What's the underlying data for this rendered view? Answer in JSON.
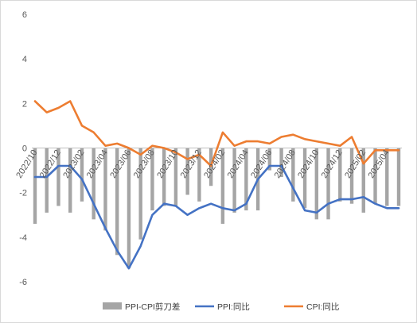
{
  "chart_data": {
    "type": "bar+line",
    "title": "",
    "xlabel": "",
    "ylabel": "",
    "ylim": [
      -6,
      6
    ],
    "yticks": [
      -6,
      -4,
      -2,
      0,
      2,
      4,
      6
    ],
    "grid": false,
    "legend_position": "bottom",
    "x_tick_labels": [
      "2022/10",
      "2022/12",
      "2023/02",
      "2023/04",
      "2023/06",
      "2023/08",
      "2023/10",
      "2023/12",
      "2024/02",
      "2024/04",
      "2024/06",
      "2024/08",
      "2024/10",
      "2024/12",
      "2025/02",
      "2025/04"
    ],
    "categories": [
      "2022/10",
      "2022/11",
      "2022/12",
      "2023/01",
      "2023/02",
      "2023/03",
      "2023/04",
      "2023/05",
      "2023/06",
      "2023/07",
      "2023/08",
      "2023/09",
      "2023/10",
      "2023/11",
      "2023/12",
      "2024/01",
      "2024/02",
      "2024/03",
      "2024/04",
      "2024/05",
      "2024/06",
      "2024/07",
      "2024/08",
      "2024/09",
      "2024/10",
      "2024/11",
      "2024/12",
      "2025/01",
      "2025/02",
      "2025/03",
      "2025/04",
      "2025/05"
    ],
    "series": [
      {
        "name": "PPI-CPI剪刀差",
        "kind": "bar",
        "color": "#a5a5a5",
        "values": [
          -3.4,
          -2.9,
          -2.6,
          -2.9,
          -2.4,
          -3.2,
          -3.7,
          -4.8,
          -5.4,
          -4.1,
          -2.8,
          -2.6,
          -2.6,
          -2.1,
          -2.4,
          -1.7,
          -3.4,
          -2.9,
          -2.8,
          -2.8,
          -1.0,
          -1.3,
          -2.4,
          -2.7,
          -3.2,
          -3.2,
          -2.4,
          -2.5,
          -2.9,
          -2.5,
          -2.6,
          -2.6
        ]
      },
      {
        "name": "PPI:同比",
        "kind": "line",
        "color": "#4472c4",
        "values": [
          -1.3,
          -1.3,
          -0.8,
          -0.8,
          -1.4,
          -2.5,
          -3.6,
          -4.6,
          -5.4,
          -4.4,
          -3.0,
          -2.5,
          -2.6,
          -3.0,
          -2.7,
          -2.5,
          -2.7,
          -2.8,
          -2.5,
          -1.4,
          -0.8,
          -0.8,
          -1.8,
          -2.8,
          -2.9,
          -2.5,
          -2.3,
          -2.3,
          -2.2,
          -2.5,
          -2.7,
          -2.7
        ]
      },
      {
        "name": "CPI:同比",
        "kind": "line",
        "color": "#ed7d31",
        "values": [
          2.1,
          1.6,
          1.8,
          2.1,
          1.0,
          0.7,
          0.1,
          0.2,
          0.0,
          -0.3,
          0.1,
          0.0,
          -0.2,
          -0.5,
          -0.3,
          -0.8,
          0.7,
          0.1,
          0.3,
          0.3,
          0.2,
          0.5,
          0.6,
          0.4,
          0.3,
          0.2,
          0.1,
          0.5,
          -0.7,
          -0.1,
          -0.1,
          -0.1
        ]
      }
    ]
  }
}
